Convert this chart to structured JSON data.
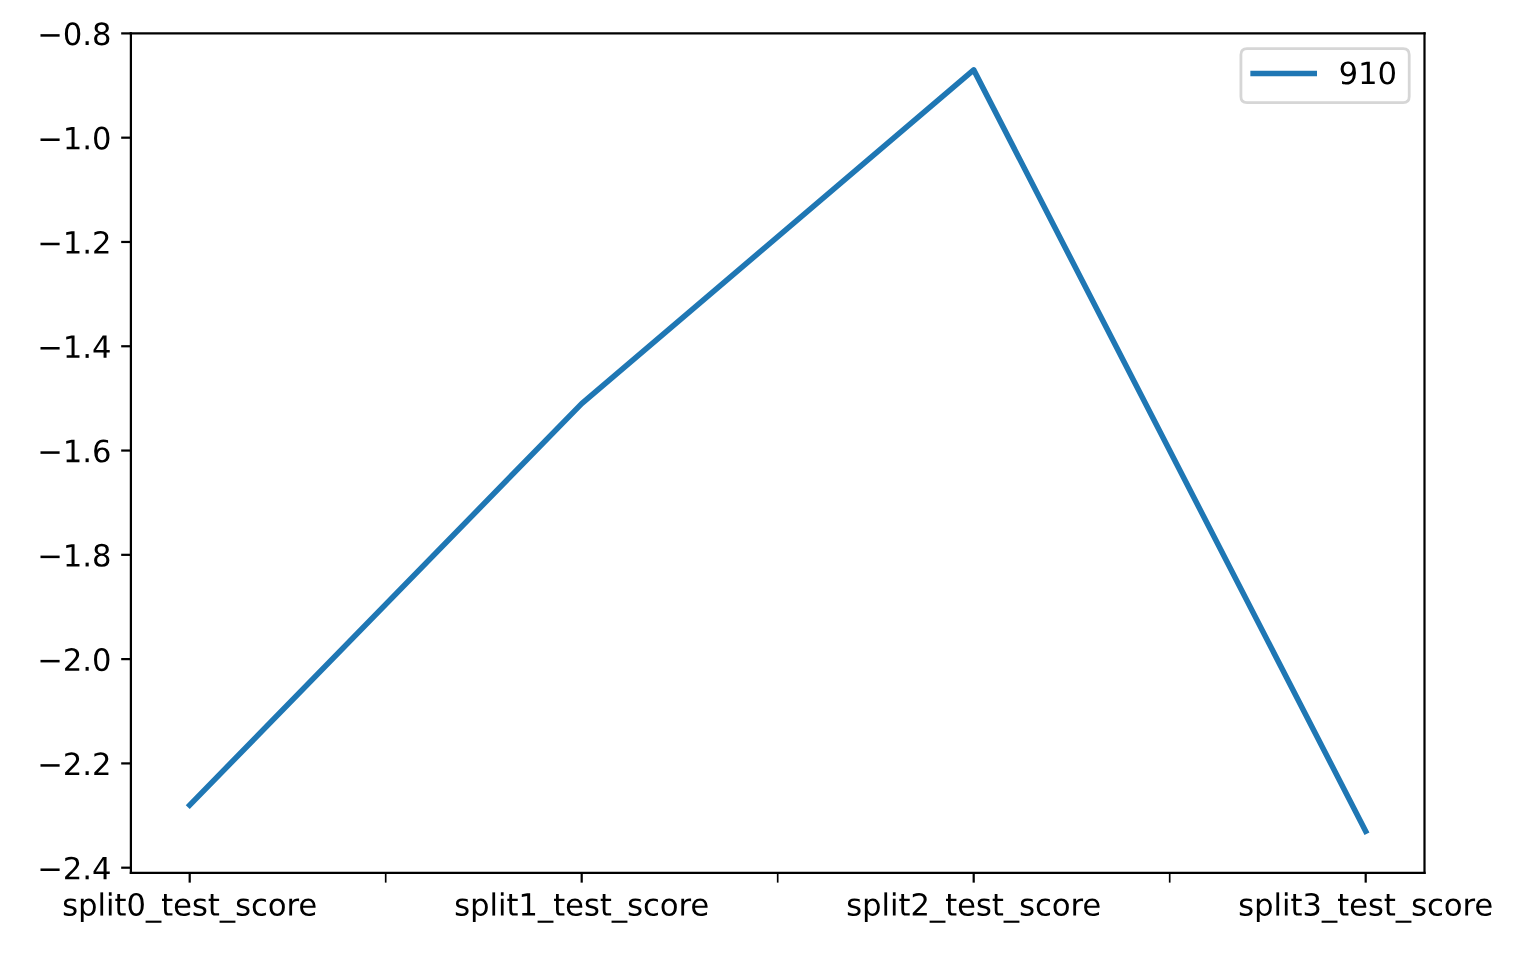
{
  "chart_data": {
    "type": "line",
    "categories": [
      "split0_test_score",
      "split1_test_score",
      "split2_test_score",
      "split3_test_score"
    ],
    "series": [
      {
        "name": "910",
        "color": "#1f77b4",
        "values": [
          -2.28,
          -1.51,
          -0.87,
          -2.33
        ]
      }
    ],
    "ylim": [
      -2.41,
      -0.8
    ],
    "yticks": [
      {
        "value": -2.4,
        "label": "−2.4"
      },
      {
        "value": -2.2,
        "label": "−2.2"
      },
      {
        "value": -2.0,
        "label": "−2.0"
      },
      {
        "value": -1.8,
        "label": "−1.8"
      },
      {
        "value": -1.6,
        "label": "−1.6"
      },
      {
        "value": -1.4,
        "label": "−1.4"
      },
      {
        "value": -1.2,
        "label": "−1.2"
      },
      {
        "value": -1.0,
        "label": "−1.0"
      },
      {
        "value": -0.8,
        "label": "−0.8"
      }
    ],
    "legend": "top right",
    "grid": false
  }
}
